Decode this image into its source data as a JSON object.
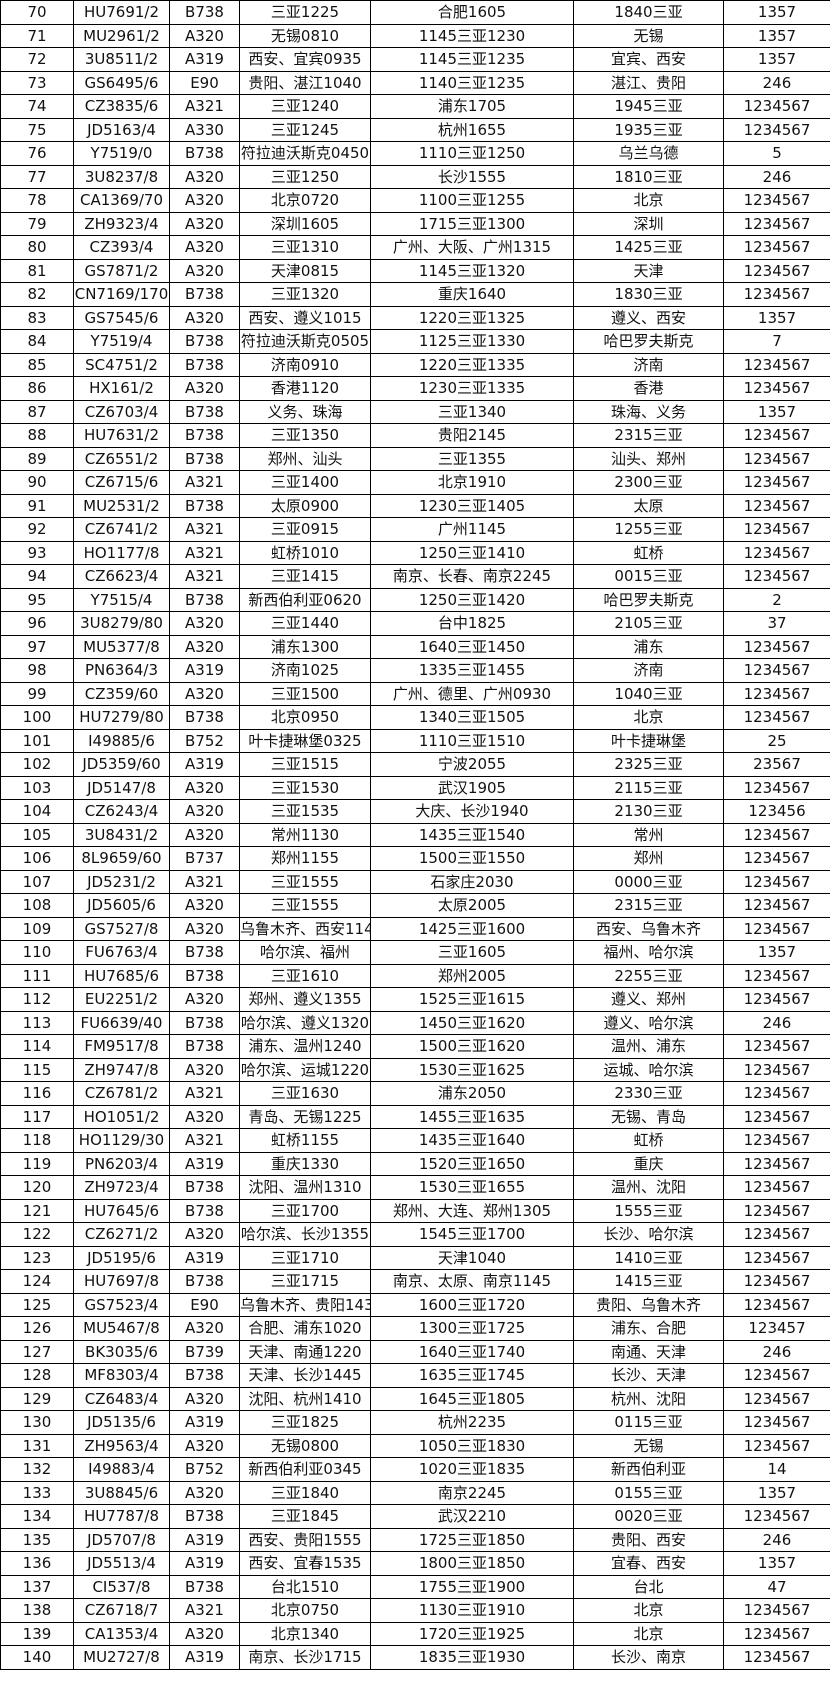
{
  "rows": [
    [
      "70",
      "HU7691/2",
      "B738",
      "三亚1225",
      "合肥1605",
      "1840三亚",
      "1357"
    ],
    [
      "71",
      "MU2961/2",
      "A320",
      "无锡0810",
      "1145三亚1230",
      "无锡",
      "1357"
    ],
    [
      "72",
      "3U8511/2",
      "A319",
      "西安、宜宾0935",
      "1145三亚1235",
      "宜宾、西安",
      "1357"
    ],
    [
      "73",
      "GS6495/6",
      "E90",
      "贵阳、湛江1040",
      "1140三亚1235",
      "湛江、贵阳",
      "246"
    ],
    [
      "74",
      "CZ3835/6",
      "A321",
      "三亚1240",
      "浦东1705",
      "1945三亚",
      "1234567"
    ],
    [
      "75",
      "JD5163/4",
      "A330",
      "三亚1245",
      "杭州1655",
      "1935三亚",
      "1234567"
    ],
    [
      "76",
      "Y7519/0",
      "B738",
      "符拉迪沃斯克0450",
      "1110三亚1250",
      "乌兰乌德",
      "5"
    ],
    [
      "77",
      "3U8237/8",
      "A320",
      "三亚1250",
      "长沙1555",
      "1810三亚",
      "246"
    ],
    [
      "78",
      "CA1369/70",
      "A320",
      "北京0720",
      "1100三亚1255",
      "北京",
      "1234567"
    ],
    [
      "79",
      "ZH9323/4",
      "A320",
      "深圳1605",
      "1715三亚1300",
      "深圳",
      "1234567"
    ],
    [
      "80",
      "CZ393/4",
      "A320",
      "三亚1310",
      "广州、大阪、广州1315",
      "1425三亚",
      "1234567"
    ],
    [
      "81",
      "GS7871/2",
      "A320",
      "天津0815",
      "1145三亚1320",
      "天津",
      "1234567"
    ],
    [
      "82",
      "CN7169/170",
      "B738",
      "三亚1320",
      "重庆1640",
      "1830三亚",
      "1234567"
    ],
    [
      "83",
      "GS7545/6",
      "A320",
      "西安、遵义1015",
      "1220三亚1325",
      "遵义、西安",
      "1357"
    ],
    [
      "84",
      "Y7519/4",
      "B738",
      "符拉迪沃斯克0505",
      "1125三亚1330",
      "哈巴罗夫斯克",
      "7"
    ],
    [
      "85",
      "SC4751/2",
      "B738",
      "济南0910",
      "1220三亚1335",
      "济南",
      "1234567"
    ],
    [
      "86",
      "HX161/2",
      "A320",
      "香港1120",
      "1230三亚1335",
      "香港",
      "1234567"
    ],
    [
      "87",
      "CZ6703/4",
      "B738",
      "义务、珠海",
      "三亚1340",
      "珠海、义务",
      "1357"
    ],
    [
      "88",
      "HU7631/2",
      "B738",
      "三亚1350",
      "贵阳2145",
      "2315三亚",
      "1234567"
    ],
    [
      "89",
      "CZ6551/2",
      "B738",
      "郑州、汕头",
      "三亚1355",
      "汕头、郑州",
      "1234567"
    ],
    [
      "90",
      "CZ6715/6",
      "A321",
      "三亚1400",
      "北京1910",
      "2300三亚",
      "1234567"
    ],
    [
      "91",
      "MU2531/2",
      "B738",
      "太原0900",
      "1230三亚1405",
      "太原",
      "1234567"
    ],
    [
      "92",
      "CZ6741/2",
      "A321",
      "三亚0915",
      "广州1145",
      "1255三亚",
      "1234567"
    ],
    [
      "93",
      "HO1177/8",
      "A321",
      "虹桥1010",
      "1250三亚1410",
      "虹桥",
      "1234567"
    ],
    [
      "94",
      "CZ6623/4",
      "A321",
      "三亚1415",
      "南京、长春、南京2245",
      "0015三亚",
      "1234567"
    ],
    [
      "95",
      "Y7515/4",
      "B738",
      "新西伯利亚0620",
      "1250三亚1420",
      "哈巴罗夫斯克",
      "2"
    ],
    [
      "96",
      "3U8279/80",
      "A320",
      "三亚1440",
      "台中1825",
      "2105三亚",
      "37"
    ],
    [
      "97",
      "MU5377/8",
      "A320",
      "浦东1300",
      "1640三亚1450",
      "浦东",
      "1234567"
    ],
    [
      "98",
      "PN6364/3",
      "A319",
      "济南1025",
      "1335三亚1455",
      "济南",
      "1234567"
    ],
    [
      "99",
      "CZ359/60",
      "A320",
      "三亚1500",
      "广州、德里、广州0930",
      "1040三亚",
      "1234567"
    ],
    [
      "100",
      "HU7279/80",
      "B738",
      "北京0950",
      "1340三亚1505",
      "北京",
      "1234567"
    ],
    [
      "101",
      "I49885/6",
      "B752",
      "叶卡捷琳堡0325",
      "1110三亚1510",
      "叶卡捷琳堡",
      "25"
    ],
    [
      "102",
      "JD5359/60",
      "A319",
      "三亚1515",
      "宁波2055",
      "2325三亚",
      "23567"
    ],
    [
      "103",
      "JD5147/8",
      "A320",
      "三亚1530",
      "武汉1905",
      "2115三亚",
      "1234567"
    ],
    [
      "104",
      "CZ6243/4",
      "A320",
      "三亚1535",
      "大庆、长沙1940",
      "2130三亚",
      "123456"
    ],
    [
      "105",
      "3U8431/2",
      "A320",
      "常州1130",
      "1435三亚1540",
      "常州",
      "1234567"
    ],
    [
      "106",
      "8L9659/60",
      "B737",
      "郑州1155",
      "1500三亚1550",
      "郑州",
      "1234567"
    ],
    [
      "107",
      "JD5231/2",
      "A321",
      "三亚1555",
      "石家庄2030",
      "0000三亚",
      "1234567"
    ],
    [
      "108",
      "JD5605/6",
      "A320",
      "三亚1555",
      "太原2005",
      "2315三亚",
      "1234567"
    ],
    [
      "109",
      "GS7527/8",
      "A320",
      "乌鲁木齐、西安114",
      "1425三亚1600",
      "西安、乌鲁木齐",
      "1234567"
    ],
    [
      "110",
      "FU6763/4",
      "B738",
      "哈尔滨、福州",
      "三亚1605",
      "福州、哈尔滨",
      "1357"
    ],
    [
      "111",
      "HU7685/6",
      "B738",
      "三亚1610",
      "郑州2005",
      "2255三亚",
      "1234567"
    ],
    [
      "112",
      "EU2251/2",
      "A320",
      "郑州、遵义1355",
      "1525三亚1615",
      "遵义、郑州",
      "1234567"
    ],
    [
      "113",
      "FU6639/40",
      "B738",
      "哈尔滨、遵义1320",
      "1450三亚1620",
      "遵义、哈尔滨",
      "246"
    ],
    [
      "114",
      "FM9517/8",
      "B738",
      "浦东、温州1240",
      "1500三亚1620",
      "温州、浦东",
      "1234567"
    ],
    [
      "115",
      "ZH9747/8",
      "A320",
      "哈尔滨、运城1220",
      "1530三亚1625",
      "运城、哈尔滨",
      "1234567"
    ],
    [
      "116",
      "CZ6781/2",
      "A321",
      "三亚1630",
      "浦东2050",
      "2330三亚",
      "1234567"
    ],
    [
      "117",
      "HO1051/2",
      "A320",
      "青岛、无锡1225",
      "1455三亚1635",
      "无锡、青岛",
      "1234567"
    ],
    [
      "118",
      "HO1129/30",
      "A321",
      "虹桥1155",
      "1435三亚1640",
      "虹桥",
      "1234567"
    ],
    [
      "119",
      "PN6203/4",
      "A319",
      "重庆1330",
      "1520三亚1650",
      "重庆",
      "1234567"
    ],
    [
      "120",
      "ZH9723/4",
      "B738",
      "沈阳、温州1310",
      "1530三亚1655",
      "温州、沈阳",
      "1234567"
    ],
    [
      "121",
      "HU7645/6",
      "B738",
      "三亚1700",
      "郑州、大连、郑州1305",
      "1555三亚",
      "1234567"
    ],
    [
      "122",
      "CZ6271/2",
      "A320",
      "哈尔滨、长沙1355",
      "1545三亚1700",
      "长沙、哈尔滨",
      "1234567"
    ],
    [
      "123",
      "JD5195/6",
      "A319",
      "三亚1710",
      "天津1040",
      "1410三亚",
      "1234567"
    ],
    [
      "124",
      "HU7697/8",
      "B738",
      "三亚1715",
      "南京、太原、南京1145",
      "1415三亚",
      "1234567"
    ],
    [
      "125",
      "GS7523/4",
      "E90",
      "乌鲁木齐、贵阳143",
      "1600三亚1720",
      "贵阳、乌鲁木齐",
      "1234567"
    ],
    [
      "126",
      "MU5467/8",
      "A320",
      "合肥、浦东1020",
      "1300三亚1725",
      "浦东、合肥",
      "123457"
    ],
    [
      "127",
      "BK3035/6",
      "B739",
      "天津、南通1220",
      "1640三亚1740",
      "南通、天津",
      "246"
    ],
    [
      "128",
      "MF8303/4",
      "B738",
      "天津、长沙1445",
      "1635三亚1745",
      "长沙、天津",
      "1234567"
    ],
    [
      "129",
      "CZ6483/4",
      "A320",
      "沈阳、杭州1410",
      "1645三亚1805",
      "杭州、沈阳",
      "1234567"
    ],
    [
      "130",
      "JD5135/6",
      "A319",
      "三亚1825",
      "杭州2235",
      "0115三亚",
      "1234567"
    ],
    [
      "131",
      "ZH9563/4",
      "A320",
      "无锡0800",
      "1050三亚1830",
      "无锡",
      "1234567"
    ],
    [
      "132",
      "I49883/4",
      "B752",
      "新西伯利亚0345",
      "1020三亚1835",
      "新西伯利亚",
      "14"
    ],
    [
      "133",
      "3U8845/6",
      "A320",
      "三亚1840",
      "南京2245",
      "0155三亚",
      "1357"
    ],
    [
      "134",
      "HU7787/8",
      "B738",
      "三亚1845",
      "武汉2210",
      "0020三亚",
      "1234567"
    ],
    [
      "135",
      "JD5707/8",
      "A319",
      "西安、贵阳1555",
      "1725三亚1850",
      "贵阳、西安",
      "246"
    ],
    [
      "136",
      "JD5513/4",
      "A319",
      "西安、宜春1535",
      "1800三亚1850",
      "宜春、西安",
      "1357"
    ],
    [
      "137",
      "CI537/8",
      "B738",
      "台北1510",
      "1755三亚1900",
      "台北",
      "47"
    ],
    [
      "138",
      "CZ6718/7",
      "A321",
      "北京0750",
      "1130三亚1910",
      "北京",
      "1234567"
    ],
    [
      "139",
      "CA1353/4",
      "A320",
      "北京1340",
      "1720三亚1925",
      "北京",
      "1234567"
    ],
    [
      "140",
      "MU2727/8",
      "A319",
      "南京、长沙1715",
      "1835三亚1930",
      "长沙、南京",
      "1234567"
    ]
  ]
}
